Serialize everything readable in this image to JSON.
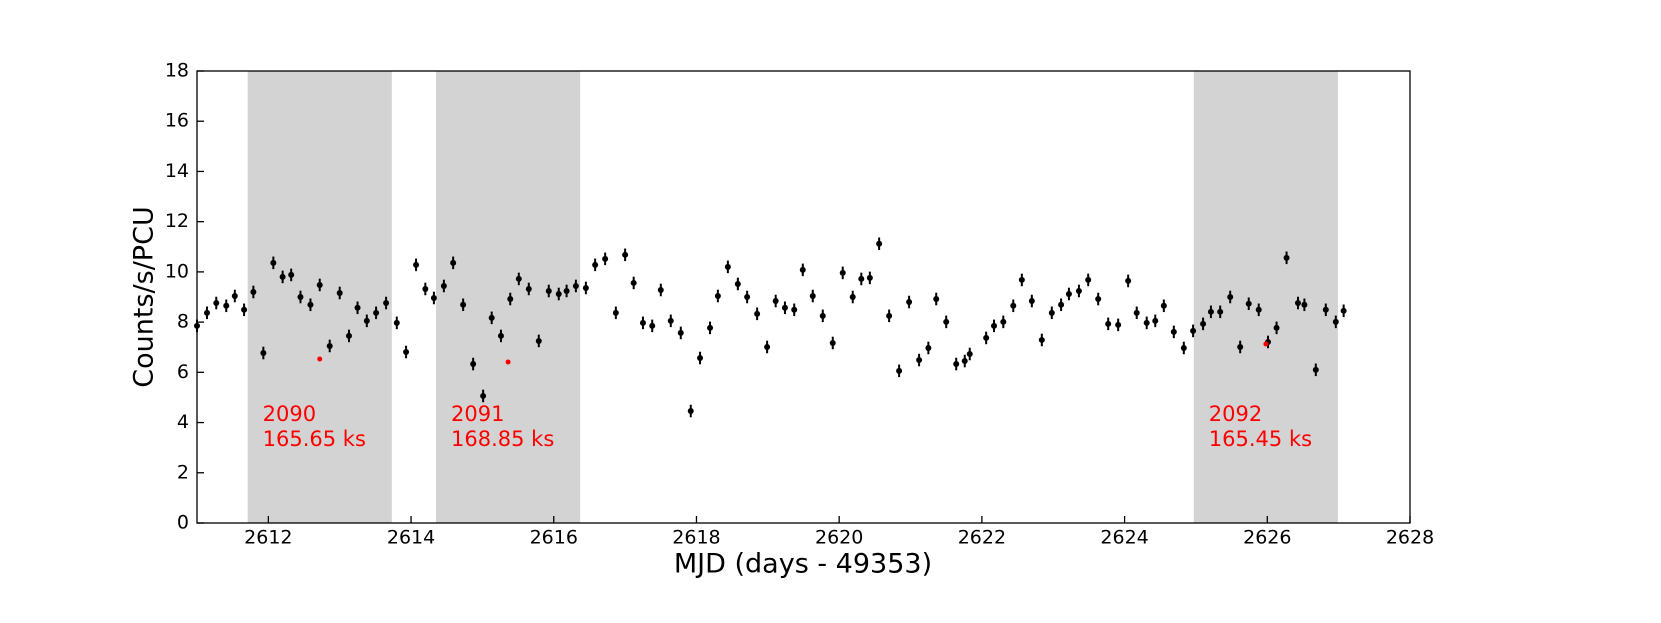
{
  "chart_data": {
    "type": "scatter",
    "xlabel": "MJD (days - 49353)",
    "ylabel": "Counts/s/PCU",
    "xlim": [
      2611,
      2628
    ],
    "xticks": [
      2612,
      2614,
      2616,
      2618,
      2620,
      2622,
      2624,
      2626,
      2628
    ],
    "ylim": [
      0,
      18
    ],
    "yticks": [
      0,
      2,
      4,
      6,
      8,
      10,
      12,
      14,
      16,
      18
    ],
    "yerr": 0.25,
    "shaded_regions": [
      {
        "xlim": [
          2611.71,
          2613.73
        ],
        "color": "#d3d3d3",
        "label": [
          "2090",
          "165.65 ks"
        ]
      },
      {
        "xlim": [
          2614.35,
          2616.37
        ],
        "color": "#d3d3d3",
        "label": [
          "2091",
          "168.85 ks"
        ]
      },
      {
        "xlim": [
          2624.97,
          2626.99
        ],
        "color": "#d3d3d3",
        "label": [
          "2092",
          "165.45 ks"
        ]
      }
    ],
    "label_color": "#ff0000",
    "series": [
      {
        "color": "#000000",
        "x": [
          2611.0,
          2611.14,
          2611.27,
          2611.41,
          2611.53,
          2611.66,
          2611.79,
          2611.93,
          2612.07,
          2612.2,
          2612.32,
          2612.45,
          2612.59,
          2612.72,
          2612.86,
          2613.0,
          2613.13,
          2613.25,
          2613.38,
          2613.51,
          2613.65,
          2613.8,
          2613.93,
          2614.07,
          2614.2,
          2614.32,
          2614.46,
          2614.59,
          2614.73,
          2614.87,
          2615.01,
          2615.13,
          2615.26,
          2615.39,
          2615.51,
          2615.65,
          2615.79,
          2615.93,
          2616.07,
          2616.18,
          2616.31,
          2616.45,
          2616.58,
          2616.72,
          2616.87,
          2617.0,
          2617.12,
          2617.25,
          2617.38,
          2617.5,
          2617.64,
          2617.78,
          2617.92,
          2618.05,
          2618.19,
          2618.3,
          2618.44,
          2618.58,
          2618.71,
          2618.85,
          2618.99,
          2619.11,
          2619.24,
          2619.37,
          2619.49,
          2619.63,
          2619.77,
          2619.91,
          2620.05,
          2620.19,
          2620.31,
          2620.43,
          2620.56,
          2620.7,
          2620.84,
          2620.98,
          2621.12,
          2621.25,
          2621.36,
          2621.5,
          2621.64,
          2621.76,
          2621.83,
          2622.06,
          2622.17,
          2622.3,
          2622.44,
          2622.56,
          2622.7,
          2622.84,
          2622.98,
          2623.11,
          2623.22,
          2623.36,
          2623.49,
          2623.63,
          2623.77,
          2623.91,
          2624.05,
          2624.17,
          2624.31,
          2624.43,
          2624.55,
          2624.69,
          2624.83,
          2624.96,
          2625.1,
          2625.21,
          2625.34,
          2625.48,
          2625.62,
          2625.74,
          2625.88,
          2626.01,
          2626.13,
          2626.27,
          2626.43,
          2626.52,
          2626.68,
          2626.82,
          2626.96,
          2627.07
        ],
        "values": [
          7.85,
          8.37,
          8.76,
          8.65,
          9.04,
          8.49,
          9.2,
          6.77,
          10.36,
          9.8,
          9.88,
          9.0,
          8.69,
          9.48,
          7.05,
          9.16,
          7.45,
          8.57,
          8.05,
          8.37,
          8.76,
          7.97,
          6.81,
          10.28,
          9.32,
          8.96,
          9.44,
          10.36,
          8.69,
          6.33,
          5.06,
          8.17,
          7.45,
          8.92,
          9.72,
          9.32,
          7.25,
          9.24,
          9.12,
          9.24,
          9.44,
          9.36,
          10.28,
          10.52,
          8.37,
          10.68,
          9.56,
          7.97,
          7.85,
          9.28,
          8.05,
          7.57,
          4.46,
          6.57,
          7.77,
          9.04,
          10.2,
          9.52,
          9.0,
          8.33,
          7.01,
          8.84,
          8.57,
          8.49,
          10.08,
          9.04,
          8.25,
          7.17,
          9.96,
          9.0,
          9.72,
          9.76,
          11.12,
          8.25,
          6.06,
          8.8,
          6.49,
          6.97,
          8.92,
          8.01,
          6.33,
          6.45,
          6.73,
          7.37,
          7.85,
          8.01,
          8.65,
          9.68,
          8.84,
          7.29,
          8.37,
          8.69,
          9.12,
          9.24,
          9.68,
          8.92,
          7.93,
          7.89,
          9.64,
          8.37,
          7.97,
          8.05,
          8.65,
          7.61,
          6.97,
          7.65,
          7.93,
          8.41,
          8.41,
          9.0,
          7.01,
          8.73,
          8.49,
          7.21,
          7.77,
          10.56,
          8.76,
          8.69,
          6.1,
          8.49,
          8.01,
          8.45
        ]
      },
      {
        "color": "#ff0000",
        "x": [
          2612.72,
          2615.36,
          2625.98
        ],
        "values": [
          6.53,
          6.41,
          7.13
        ]
      }
    ]
  }
}
